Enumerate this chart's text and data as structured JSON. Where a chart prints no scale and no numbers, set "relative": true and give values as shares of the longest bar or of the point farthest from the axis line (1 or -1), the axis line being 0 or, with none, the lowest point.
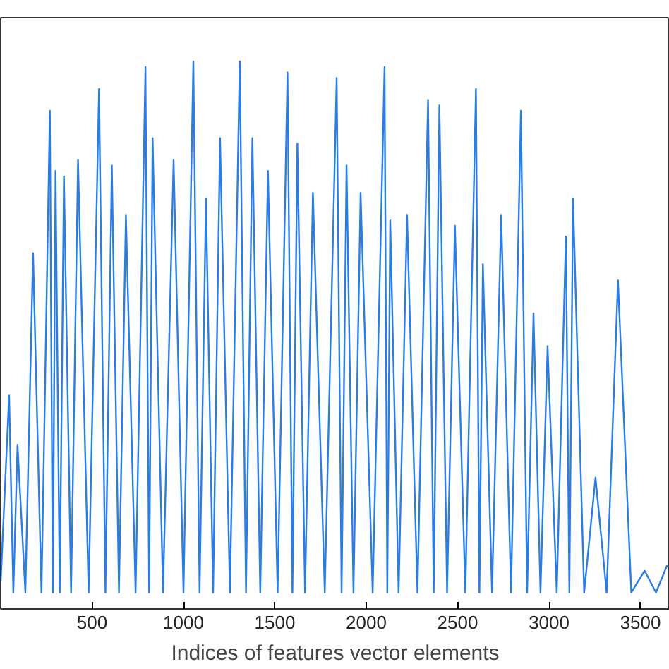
{
  "chart_data": {
    "type": "line",
    "xlabel": "Indices of features vector elements",
    "relative": true,
    "tick_labels": "x",
    "grid": false,
    "xlim": [
      0,
      3660
    ],
    "xticks": [
      500,
      1000,
      1500,
      2000,
      2500,
      3000,
      3500
    ],
    "x": [
      0,
      46,
      69,
      92,
      135,
      177,
      223,
      269,
      285,
      300,
      323,
      346,
      385,
      423,
      481,
      538,
      573,
      608,
      647,
      685,
      738,
      792,
      812,
      831,
      888,
      946,
      1000,
      1054,
      1088,
      1123,
      1162,
      1200,
      1254,
      1308,
      1342,
      1377,
      1420,
      1462,
      1515,
      1569,
      1596,
      1623,
      1665,
      1708,
      1773,
      1838,
      1865,
      1892,
      1930,
      1969,
      2035,
      2100,
      2115,
      2131,
      2177,
      2223,
      2280,
      2338,
      2369,
      2400,
      2442,
      2485,
      2542,
      2600,
      2619,
      2638,
      2688,
      2738,
      2792,
      2846,
      2880,
      2915,
      2953,
      2992,
      3042,
      3092,
      3111,
      3131,
      3192,
      3254,
      3315,
      3377,
      3450,
      3523,
      3585,
      3646
    ],
    "series": [
      {
        "color": "#2a7de1",
        "values": [
          0.05,
          0.39,
          0.03,
          0.3,
          0.03,
          0.65,
          0.03,
          0.91,
          0.03,
          0.8,
          0.03,
          0.79,
          0.03,
          0.82,
          0.03,
          0.95,
          0.03,
          0.81,
          0.03,
          0.72,
          0.03,
          0.99,
          0.03,
          0.86,
          0.03,
          0.82,
          0.03,
          1.0,
          0.03,
          0.75,
          0.03,
          0.86,
          0.03,
          1.0,
          0.03,
          0.86,
          0.03,
          0.8,
          0.03,
          0.98,
          0.03,
          0.85,
          0.03,
          0.76,
          0.03,
          0.97,
          0.03,
          0.81,
          0.03,
          0.76,
          0.03,
          0.99,
          0.03,
          0.71,
          0.03,
          0.72,
          0.03,
          0.93,
          0.03,
          0.92,
          0.03,
          0.7,
          0.03,
          0.95,
          0.03,
          0.63,
          0.03,
          0.72,
          0.03,
          0.91,
          0.03,
          0.54,
          0.03,
          0.48,
          0.03,
          0.68,
          0.03,
          0.75,
          0.03,
          0.24,
          0.03,
          0.6,
          0.03,
          0.07,
          0.03,
          0.08
        ]
      }
    ]
  }
}
